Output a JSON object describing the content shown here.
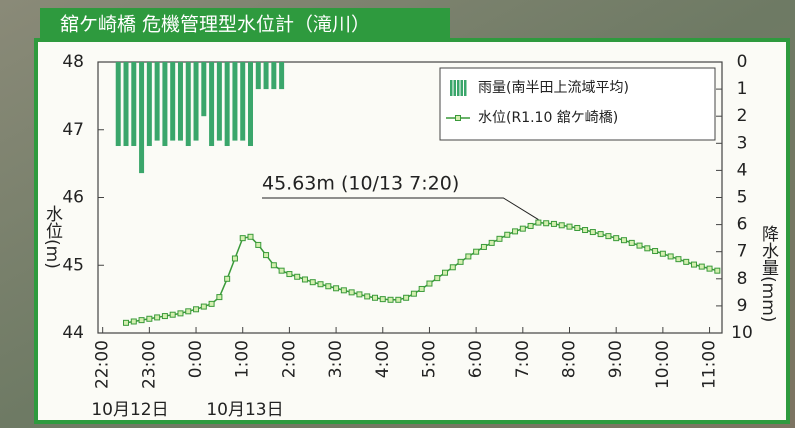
{
  "chart_data": {
    "type": "combo",
    "title": "舘ケ崎橋 危機管理型水位計（滝川）",
    "y_label": "水位(m)",
    "y2_label": "降水量(mm)",
    "annotation": "45.63m (10/13 7:20)",
    "date_labels": [
      "10月12日",
      "10月13日"
    ],
    "xlim": [
      -6,
      796
    ],
    "xticks": [
      {
        "value": 0,
        "label": "22:00"
      },
      {
        "value": 60,
        "label": "23:00"
      },
      {
        "value": 120,
        "label": "0:00"
      },
      {
        "value": 180,
        "label": "1:00"
      },
      {
        "value": 240,
        "label": "2:00"
      },
      {
        "value": 300,
        "label": "3:00"
      },
      {
        "value": 360,
        "label": "4:00"
      },
      {
        "value": 420,
        "label": "5:00"
      },
      {
        "value": 480,
        "label": "6:00"
      },
      {
        "value": 540,
        "label": "7:00"
      },
      {
        "value": 600,
        "label": "8:00"
      },
      {
        "value": 660,
        "label": "9:00"
      },
      {
        "value": 720,
        "label": "10:00"
      },
      {
        "value": 780,
        "label": "11:00"
      }
    ],
    "ylim": [
      44,
      48
    ],
    "yticks": [
      44,
      45,
      46,
      47,
      48
    ],
    "y2lim": [
      10,
      0
    ],
    "y2ticks": [
      0,
      1,
      2,
      3,
      4,
      5,
      6,
      7,
      8,
      9,
      10
    ],
    "series": [
      {
        "name": "雨量(南半田上流域平均)",
        "type": "bar",
        "axis": "y2",
        "color": "#3aa66b",
        "x": [
          20,
          30,
          40,
          50,
          60,
          70,
          80,
          90,
          100,
          110,
          120,
          130,
          140,
          150,
          160,
          170,
          180,
          190,
          200,
          210,
          220,
          230
        ],
        "values": [
          3.1,
          3.1,
          3.1,
          4.1,
          3.1,
          2.9,
          3.1,
          2.9,
          2.9,
          3.1,
          2.9,
          2.0,
          3.1,
          2.9,
          3.1,
          2.9,
          2.9,
          3.1,
          1.0,
          1.0,
          1.0,
          1.0
        ]
      },
      {
        "name": "水位(R1.10 舘ケ崎橋)",
        "type": "line",
        "axis": "y",
        "color": "#3a9a3a",
        "x": [
          30,
          40,
          50,
          60,
          70,
          80,
          90,
          100,
          110,
          120,
          130,
          140,
          150,
          160,
          170,
          180,
          190,
          200,
          210,
          220,
          230,
          240,
          250,
          260,
          270,
          280,
          290,
          300,
          310,
          320,
          330,
          340,
          350,
          360,
          370,
          380,
          390,
          400,
          410,
          420,
          430,
          440,
          450,
          460,
          470,
          480,
          490,
          500,
          510,
          520,
          530,
          540,
          550,
          560,
          570,
          580,
          590,
          600,
          610,
          620,
          630,
          640,
          650,
          660,
          670,
          680,
          690,
          700,
          710,
          720,
          730,
          740,
          750,
          760,
          770,
          780,
          790
        ],
        "values": [
          44.15,
          44.17,
          44.19,
          44.21,
          44.23,
          44.25,
          44.27,
          44.29,
          44.32,
          44.35,
          44.39,
          44.43,
          44.53,
          44.8,
          45.1,
          45.4,
          45.42,
          45.3,
          45.15,
          45.0,
          44.92,
          44.87,
          44.83,
          44.79,
          44.75,
          44.72,
          44.69,
          44.66,
          44.63,
          44.6,
          44.57,
          44.54,
          44.52,
          44.5,
          44.49,
          44.49,
          44.52,
          44.58,
          44.65,
          44.73,
          44.81,
          44.89,
          44.97,
          45.05,
          45.13,
          45.2,
          45.27,
          45.33,
          45.39,
          45.45,
          45.5,
          45.54,
          45.58,
          45.63,
          45.62,
          45.61,
          45.59,
          45.57,
          45.55,
          45.52,
          45.49,
          45.46,
          45.43,
          45.4,
          45.37,
          45.33,
          45.29,
          45.25,
          45.21,
          45.17,
          45.13,
          45.09,
          45.05,
          45.01,
          44.98,
          44.95,
          44.92
        ]
      }
    ]
  }
}
